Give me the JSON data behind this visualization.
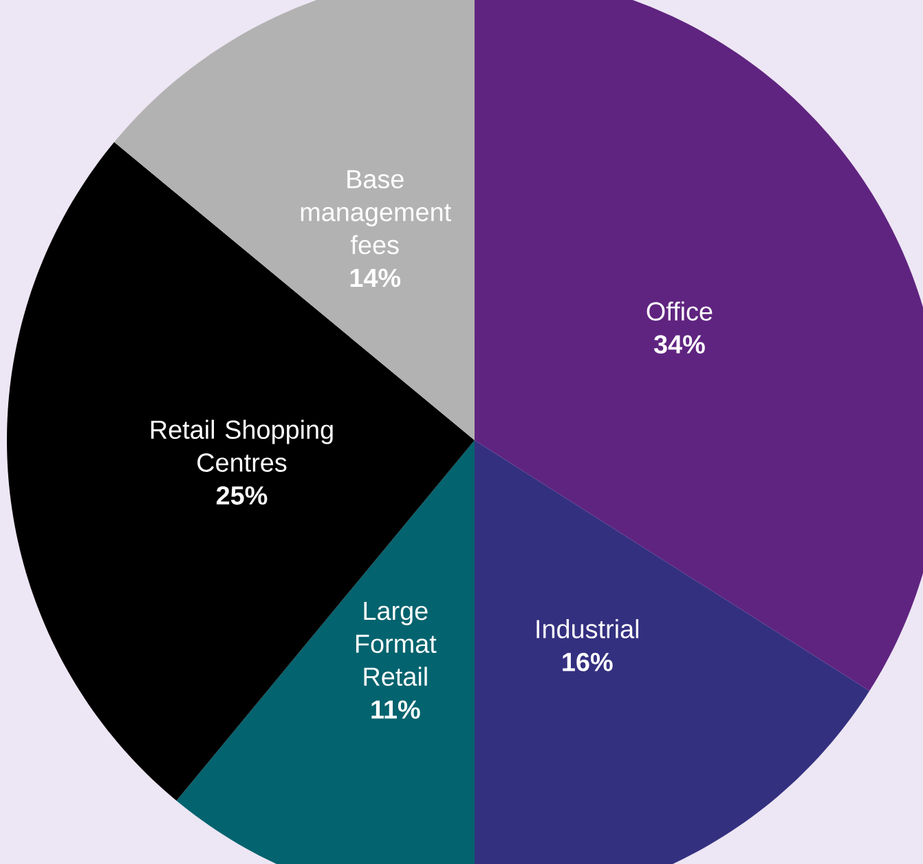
{
  "chart_data": {
    "type": "pie",
    "categories": [
      "Office",
      "Industrial",
      "Large Format Retail",
      "Retail Shopping Centres",
      "Base management fees"
    ],
    "values": [
      34,
      16,
      11,
      25,
      14
    ],
    "value_labels": [
      "34%",
      "16%",
      "11%",
      "25%",
      "14%"
    ],
    "colors": [
      "#5f2480",
      "#343080",
      "#03636e",
      "#000000",
      "#b2b2b2"
    ]
  }
}
